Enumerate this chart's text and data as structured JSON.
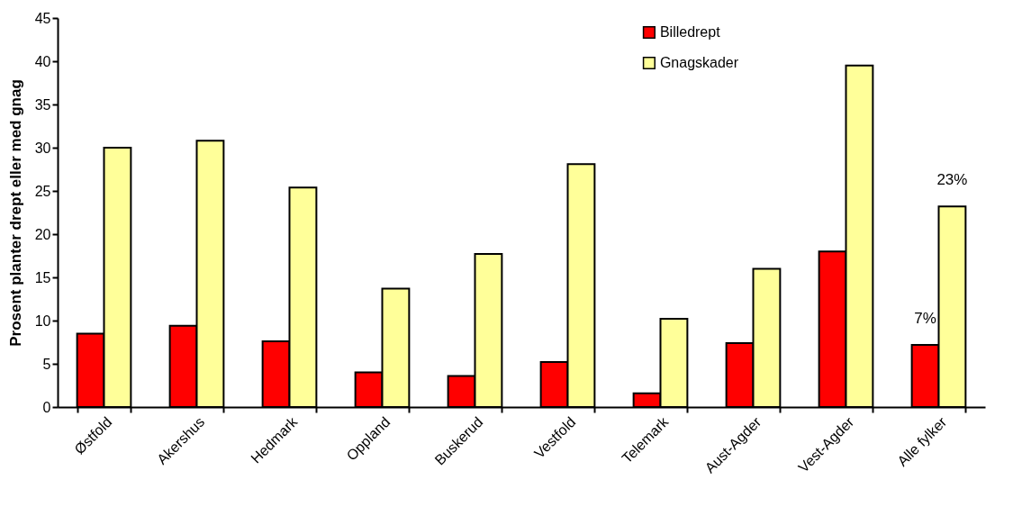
{
  "chart_data": {
    "type": "bar",
    "ylabel": "Prosent planter drept eller med gnag",
    "categories": [
      "Østfold",
      "Akershus",
      "Hedmark",
      "Oppland",
      "Buskerud",
      "Vestfold",
      "Telemark",
      "Aust-Agder",
      "Vest-Agder",
      "Alle fylker"
    ],
    "series": [
      {
        "name": "Billedrept",
        "color": "#ff0000",
        "values": [
          8.5,
          9.4,
          7.6,
          4.0,
          3.6,
          5.2,
          1.6,
          7.4,
          18.0,
          7.2
        ],
        "value_labels": [
          null,
          null,
          null,
          null,
          null,
          null,
          null,
          null,
          null,
          "7%"
        ]
      },
      {
        "name": "Gnagskader",
        "color": "#ffff99",
        "values": [
          30.0,
          30.8,
          25.4,
          13.7,
          17.7,
          28.1,
          10.2,
          16.0,
          39.5,
          23.2
        ],
        "value_labels": [
          null,
          null,
          null,
          null,
          null,
          null,
          null,
          null,
          null,
          "23%"
        ]
      }
    ],
    "ylim": [
      0,
      45
    ],
    "yticks": [
      0,
      5,
      10,
      15,
      20,
      25,
      30,
      35,
      40,
      45
    ],
    "grid": false,
    "legend": "top right"
  }
}
